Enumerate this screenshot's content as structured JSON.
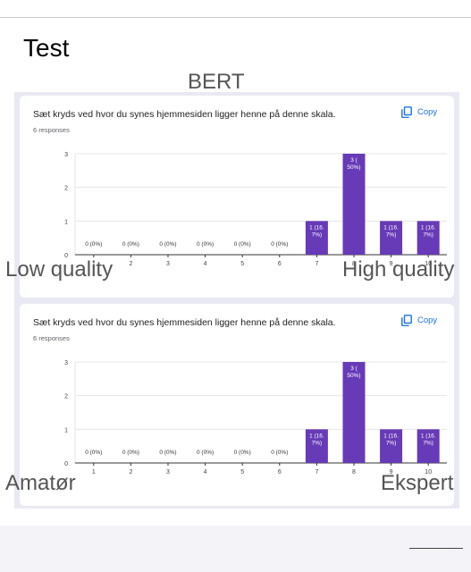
{
  "page_title": "Test",
  "section_label": "BERT",
  "chart_data": [
    {
      "type": "bar",
      "title": "Sæt kryds ved hvor du synes hjemmesiden ligger henne på denne skala.",
      "responses": "6 responses",
      "copy_label": "Copy",
      "categories": [
        "1",
        "2",
        "3",
        "4",
        "5",
        "6",
        "7",
        "8",
        "9",
        "10"
      ],
      "values": [
        0,
        0,
        0,
        0,
        0,
        0,
        1,
        3,
        1,
        1
      ],
      "data_labels": [
        [
          "0 (0%)"
        ],
        [
          "0 (0%)"
        ],
        [
          "0 (0%)"
        ],
        [
          "0 (0%)"
        ],
        [
          "0 (0%)"
        ],
        [
          "0 (0%)"
        ],
        [
          "1 (16.",
          "7%)"
        ],
        [
          "3 (",
          "50%)"
        ],
        [
          "1 (16.",
          "7%)"
        ],
        [
          "1 (16.",
          "7%)"
        ]
      ],
      "y_ticks": [
        "0",
        "1",
        "2",
        "3"
      ],
      "ylim": [
        0,
        3
      ],
      "grid": true,
      "bar_color": "#673ab7",
      "scale_low_label": "Low quality",
      "scale_high_label": "High quality"
    },
    {
      "type": "bar",
      "title": "Sæt kryds ved hvor du synes hjemmesiden ligger henne på denne skala.",
      "responses": "6 responses",
      "copy_label": "Copy",
      "categories": [
        "1",
        "2",
        "3",
        "4",
        "5",
        "6",
        "7",
        "8",
        "9",
        "10"
      ],
      "values": [
        0,
        0,
        0,
        0,
        0,
        0,
        1,
        3,
        1,
        1
      ],
      "data_labels": [
        [
          "0 (0%)"
        ],
        [
          "0 (0%)"
        ],
        [
          "0 (0%)"
        ],
        [
          "0 (0%)"
        ],
        [
          "0 (0%)"
        ],
        [
          "0 (0%)"
        ],
        [
          "1 (16.",
          "7%)"
        ],
        [
          "3 (",
          "50%)"
        ],
        [
          "1 (16.",
          "7%)"
        ],
        [
          "1 (16.",
          "7%)"
        ]
      ],
      "y_ticks": [
        "0",
        "1",
        "2",
        "3"
      ],
      "ylim": [
        0,
        3
      ],
      "grid": true,
      "bar_color": "#673ab7",
      "scale_low_label": "Amatør",
      "scale_high_label": "Ekspert"
    }
  ],
  "icons": {
    "copy": "copy-icon"
  }
}
